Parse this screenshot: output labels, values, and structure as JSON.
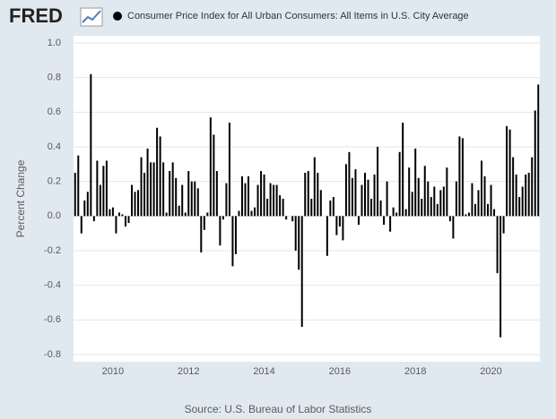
{
  "logo": "FRED",
  "chart_data": {
    "type": "bar",
    "title": "Consumer Price Index for All Urban Consumers: All Items in U.S. City Average",
    "ylabel": "Percent Change",
    "source": "Source: U.S. Bureau of Labor Statistics",
    "color": "#000000",
    "grid": true,
    "ylim": [
      -0.8,
      1.0
    ],
    "yticks": [
      -0.8,
      -0.6,
      -0.4,
      -0.2,
      {
        "value": 0,
        "label": "0.0"
      },
      0.2,
      0.4,
      0.6,
      0.8,
      {
        "value": 1,
        "label": "1.0"
      }
    ],
    "categories": [
      null,
      null,
      null,
      null,
      null,
      null,
      null,
      null,
      null,
      null,
      null,
      null,
      "2010",
      null,
      null,
      null,
      null,
      null,
      null,
      null,
      null,
      null,
      null,
      null,
      null,
      null,
      null,
      null,
      null,
      null,
      null,
      null,
      null,
      null,
      null,
      null,
      "2012",
      null,
      null,
      null,
      null,
      null,
      null,
      null,
      null,
      null,
      null,
      null,
      null,
      null,
      null,
      null,
      null,
      null,
      null,
      null,
      null,
      null,
      null,
      null,
      "2014",
      null,
      null,
      null,
      null,
      null,
      null,
      null,
      null,
      null,
      null,
      null,
      null,
      null,
      null,
      null,
      null,
      null,
      null,
      null,
      null,
      null,
      null,
      null,
      "2016",
      null,
      null,
      null,
      null,
      null,
      null,
      null,
      null,
      null,
      null,
      null,
      null,
      null,
      null,
      null,
      null,
      null,
      null,
      null,
      null,
      null,
      null,
      null,
      "2018",
      null,
      null,
      null,
      null,
      null,
      null,
      null,
      null,
      null,
      null,
      null,
      null,
      null,
      null,
      null,
      null,
      null,
      null,
      null,
      null,
      null,
      null,
      null,
      "2020",
      null,
      null,
      null,
      null,
      null,
      null,
      null,
      null,
      null,
      null,
      null,
      null,
      null,
      null,
      null
    ],
    "values": [
      0.25,
      0.35,
      -0.1,
      0.09,
      0.14,
      0.82,
      -0.03,
      0.32,
      0.18,
      0.29,
      0.32,
      0.04,
      0.05,
      -0.1,
      0.02,
      0.01,
      -0.06,
      -0.04,
      0.18,
      0.14,
      0.15,
      0.34,
      0.25,
      0.39,
      0.31,
      0.31,
      0.51,
      0.46,
      0.31,
      0.02,
      0.26,
      0.31,
      0.22,
      0.06,
      0.18,
      0.02,
      0.26,
      0.2,
      0.2,
      0.16,
      -0.21,
      -0.08,
      0.02,
      0.57,
      0.47,
      0.26,
      -0.17,
      -0.02,
      0.19,
      0.54,
      -0.29,
      -0.22,
      0.03,
      0.23,
      0.19,
      0.23,
      0.03,
      0.05,
      0.18,
      0.26,
      0.24,
      0.1,
      0.19,
      0.18,
      0.18,
      0.12,
      0.1,
      -0.02,
      0.0,
      -0.03,
      -0.2,
      -0.31,
      -0.64,
      0.25,
      0.26,
      0.1,
      0.34,
      0.25,
      0.15,
      0.0,
      -0.23,
      0.09,
      0.11,
      -0.11,
      -0.06,
      -0.14,
      0.3,
      0.37,
      0.22,
      0.27,
      -0.05,
      0.18,
      0.25,
      0.21,
      0.1,
      0.24,
      0.4,
      0.09,
      -0.05,
      0.2,
      -0.09,
      0.05,
      0.02,
      0.37,
      0.54,
      0.04,
      0.28,
      0.14,
      0.39,
      0.22,
      0.1,
      0.29,
      0.2,
      0.11,
      0.17,
      0.07,
      0.15,
      0.17,
      0.28,
      -0.03,
      -0.13,
      0.2,
      0.46,
      0.45,
      0.01,
      0.02,
      0.19,
      0.07,
      0.15,
      0.32,
      0.23,
      0.07,
      0.18,
      0.04,
      -0.33,
      -0.7,
      -0.1,
      0.52,
      0.5,
      0.34,
      0.24,
      0.11,
      0.17,
      0.24,
      0.25,
      0.34,
      0.61,
      0.76
    ]
  }
}
